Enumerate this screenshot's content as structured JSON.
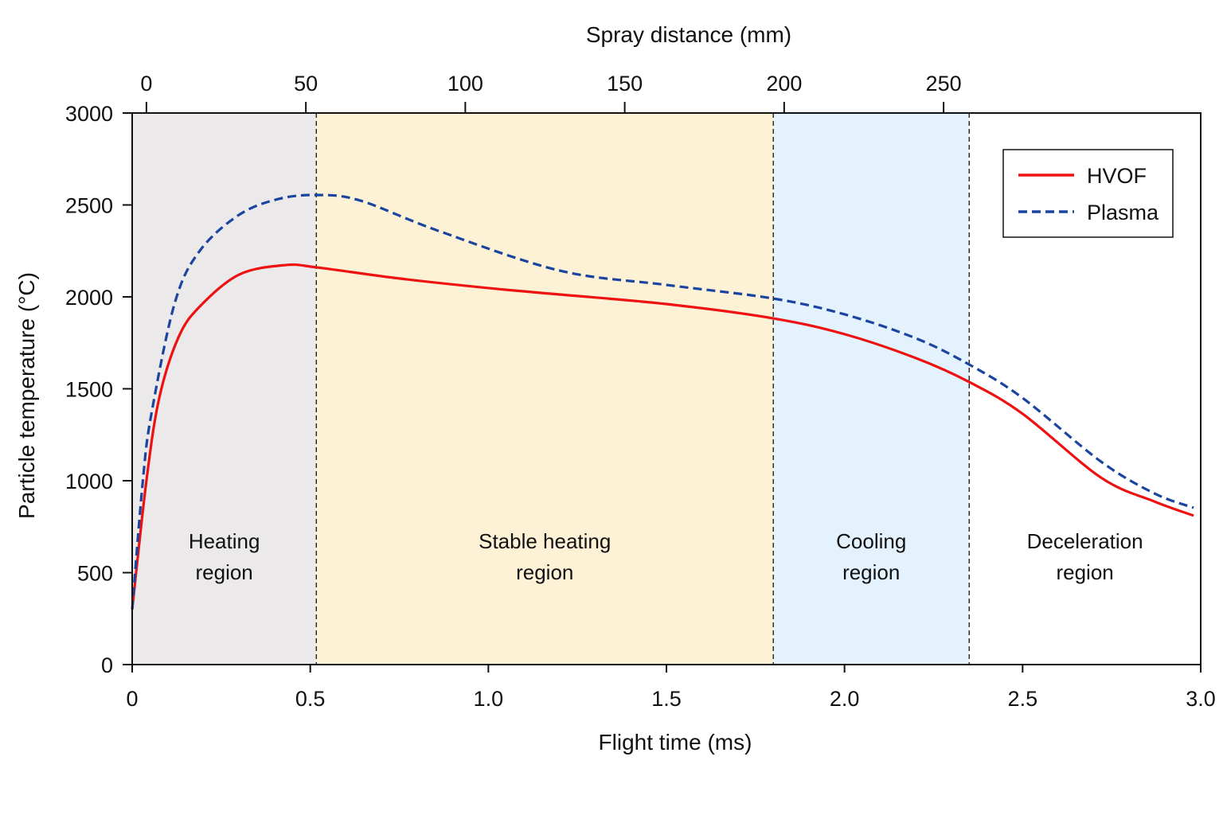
{
  "chart_data": {
    "type": "line",
    "xlabel": "Flight time (ms)",
    "ylabel": "Particle temperature (°C)",
    "x2label": "Spray distance (mm)",
    "xlim": [
      0,
      3.0
    ],
    "ylim": [
      0,
      3000
    ],
    "x2lim_start_at_time_ms": 0.04,
    "x2_mm_per_ms": 111.7,
    "x_ticks": [
      "0",
      "0.5",
      "1.0",
      "1.5",
      "2.0",
      "2.5",
      "3.0"
    ],
    "x_tick_values": [
      0,
      0.5,
      1.0,
      1.5,
      2.0,
      2.5,
      3.0
    ],
    "y_ticks": [
      "0",
      "500",
      "1000",
      "1500",
      "2000",
      "2500",
      "3000"
    ],
    "y_tick_values": [
      0,
      500,
      1000,
      1500,
      2000,
      2500,
      3000
    ],
    "x2_ticks": [
      "0",
      "50",
      "100",
      "150",
      "200",
      "250"
    ],
    "x2_tick_values": [
      0,
      50,
      100,
      150,
      200,
      250
    ],
    "grid": false,
    "legend_position": "top-right",
    "regions": [
      {
        "label_lines": [
          "Heating",
          "region"
        ],
        "start": 0,
        "end": 0.517,
        "color": "#ebe9ea"
      },
      {
        "label_lines": [
          "Stable heating",
          "region"
        ],
        "start": 0.517,
        "end": 1.8,
        "color": "#fdf2d6"
      },
      {
        "label_lines": [
          "Cooling",
          "region"
        ],
        "start": 1.8,
        "end": 2.35,
        "color": "#e3f2fd"
      },
      {
        "label_lines": [
          "Deceleration",
          "region"
        ],
        "start": 2.35,
        "end": 3.0,
        "color": "#ffffff"
      }
    ],
    "series": [
      {
        "name": "HVOF",
        "color": "#ee1111",
        "style": "solid",
        "x": [
          0,
          0.04,
          0.076,
          0.13,
          0.19,
          0.3,
          0.43,
          0.52,
          0.75,
          1.0,
          1.2,
          1.5,
          1.8,
          2.0,
          2.2,
          2.35,
          2.5,
          2.72,
          2.87,
          2.98
        ],
        "y": [
          300,
          1000,
          1450,
          1780,
          1948,
          2121,
          2173,
          2160,
          2100,
          2048,
          2013,
          1961,
          1883,
          1797,
          1667,
          1537,
          1364,
          1017,
          887,
          810
        ]
      },
      {
        "name": "Plasma",
        "color": "#1a44a0",
        "style": "dashed",
        "x": [
          0,
          0.03,
          0.054,
          0.12,
          0.19,
          0.3,
          0.41,
          0.52,
          0.64,
          0.86,
          1.2,
          1.5,
          1.8,
          2.0,
          2.2,
          2.35,
          2.5,
          2.72,
          2.87,
          2.98
        ],
        "y": [
          300,
          1000,
          1364,
          1970,
          2251,
          2446,
          2532,
          2554,
          2524,
          2359,
          2143,
          2065,
          1991,
          1905,
          1775,
          1632,
          1450,
          1104,
          931,
          853
        ]
      }
    ]
  }
}
